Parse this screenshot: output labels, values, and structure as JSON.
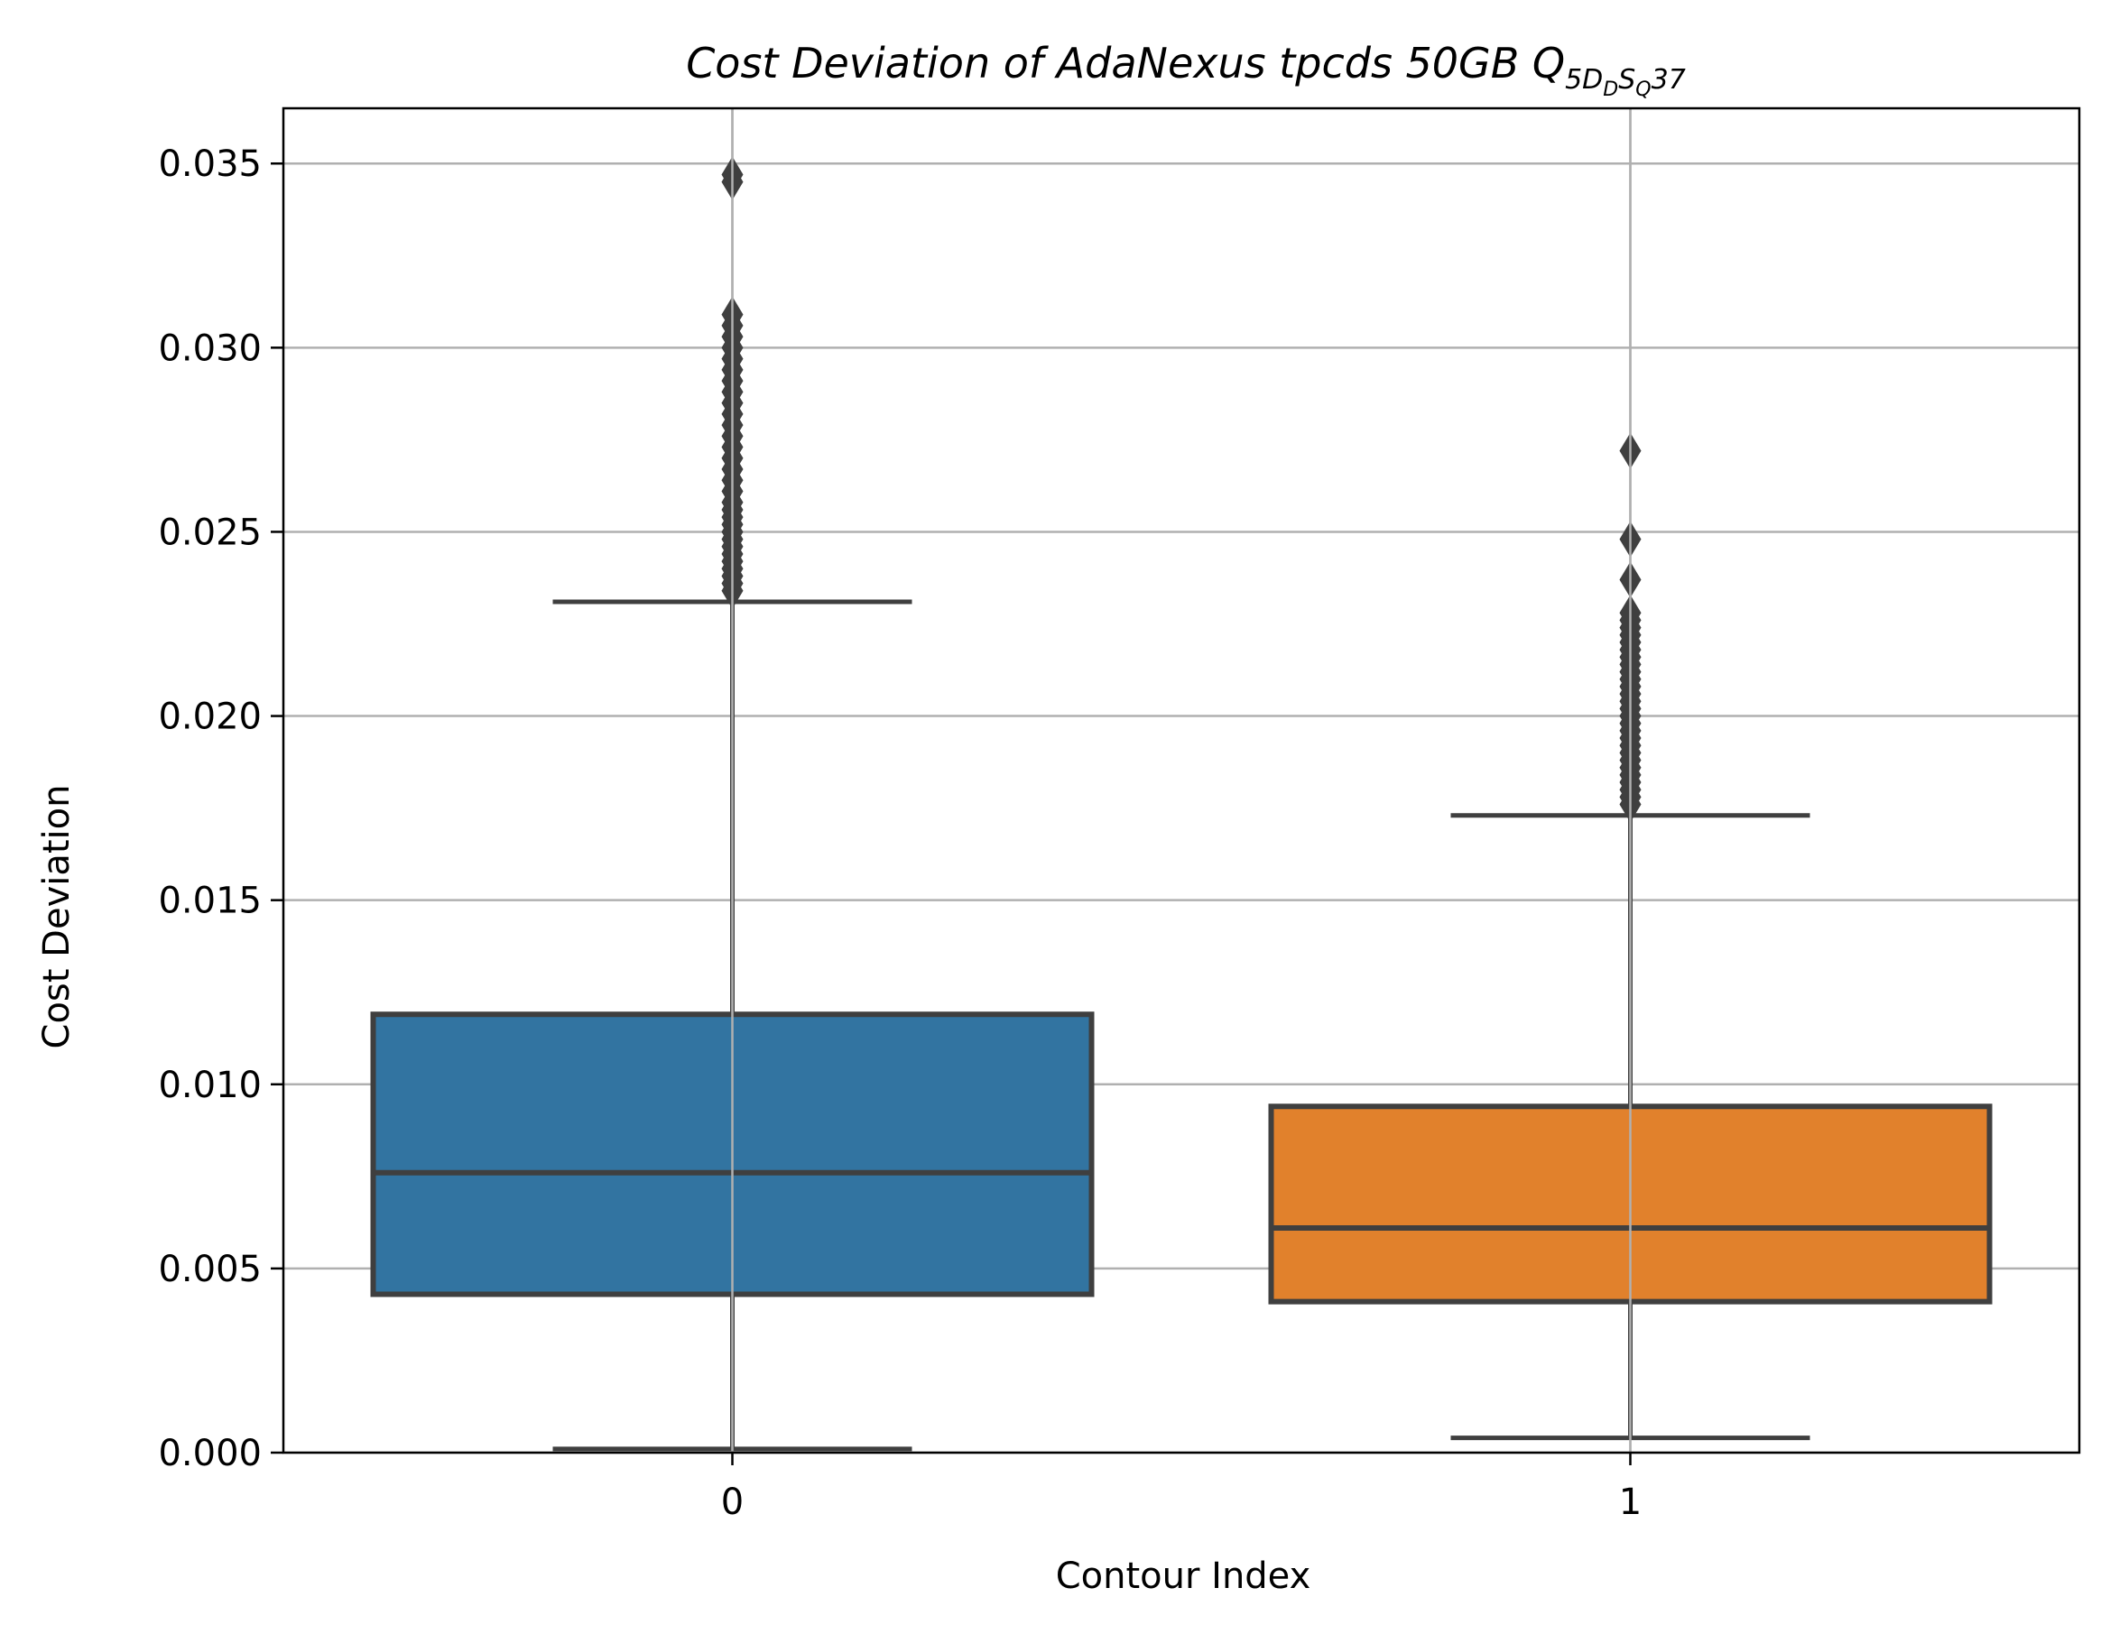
{
  "chart_data": {
    "type": "box",
    "title": {
      "main": "Cost Deviation of AdaNexus tpcds  50GB  Q",
      "subscript_prefix": "5D",
      "subscript_sub1": "D",
      "subscript_mid": "S",
      "subscript_sub2": "Q",
      "suffix": "37"
    },
    "xlabel": "Contour Index",
    "ylabel": "Cost Deviation",
    "ylim": [
      0,
      0.0365
    ],
    "yticks": [
      0.0,
      0.005,
      0.01,
      0.015,
      0.02,
      0.025,
      0.03,
      0.035
    ],
    "ytick_labels": [
      "0.000",
      "0.005",
      "0.010",
      "0.015",
      "0.020",
      "0.025",
      "0.030",
      "0.035"
    ],
    "grid": true,
    "categories": [
      "0",
      "1"
    ],
    "boxes": [
      {
        "category": "0",
        "color": "#3274a1",
        "whisker_low": 0.0001,
        "q1": 0.0043,
        "median": 0.0076,
        "q3": 0.0119,
        "whisker_high": 0.0231,
        "outliers": [
          0.0234,
          0.0236,
          0.0238,
          0.024,
          0.0242,
          0.0244,
          0.0246,
          0.0248,
          0.025,
          0.0252,
          0.0254,
          0.0256,
          0.0258,
          0.0261,
          0.0264,
          0.0267,
          0.027,
          0.0273,
          0.0276,
          0.0279,
          0.0282,
          0.0285,
          0.0288,
          0.0291,
          0.0294,
          0.0297,
          0.03,
          0.0303,
          0.0306,
          0.0309,
          0.0345,
          0.0347
        ]
      },
      {
        "category": "1",
        "color": "#e1812c",
        "whisker_low": 0.0004,
        "q1": 0.0041,
        "median": 0.0061,
        "q3": 0.0094,
        "whisker_high": 0.0173,
        "outliers": [
          0.0176,
          0.0178,
          0.018,
          0.0182,
          0.0184,
          0.0186,
          0.0188,
          0.019,
          0.0192,
          0.0194,
          0.0196,
          0.0198,
          0.02,
          0.0202,
          0.0204,
          0.0206,
          0.0208,
          0.021,
          0.0212,
          0.0214,
          0.0216,
          0.0218,
          0.022,
          0.0222,
          0.0224,
          0.0226,
          0.0228,
          0.0237,
          0.0248,
          0.0272
        ]
      }
    ],
    "line_color": "#3f3f3f",
    "grid_color": "#b0b0b0"
  }
}
